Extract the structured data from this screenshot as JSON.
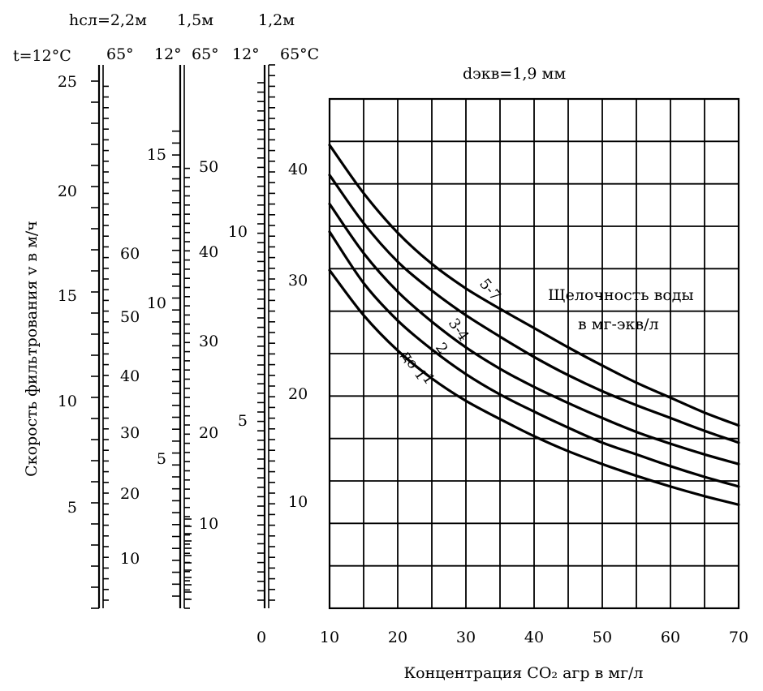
{
  "header": {
    "depth_label": "hсл=2,2м",
    "depth_2": "1,5м",
    "depth_3": "1,2м",
    "temp_left": "t=12°C",
    "temp_1": "65°",
    "temp_2": "12°",
    "temp_3": "65°",
    "temp_4": "12°",
    "temp_5": "65°C"
  },
  "chart_data": {
    "type": "line",
    "title": "dэкв=1,9 мм",
    "xlabel": "Концентрация CO₂ агр в мг/л",
    "ylabel": "Скорость фильтрования v в м/ч",
    "legend_title_1": "Щелочность воды",
    "legend_title_2": "в мг-экв/л",
    "x_tick_labels": [
      "0",
      "10",
      "20",
      "30",
      "40",
      "50",
      "60",
      "70"
    ],
    "xlim": [
      10,
      70
    ],
    "grid": true,
    "series": [
      {
        "name": "5-7",
        "x": [
          10,
          15,
          20,
          25,
          30,
          35,
          40,
          45,
          50,
          55,
          60,
          65,
          70
        ],
        "y": [
          43.5,
          39.0,
          35.3,
          32.4,
          30.1,
          28.2,
          26.4,
          24.6,
          22.9,
          21.3,
          19.9,
          18.5,
          17.3
        ]
      },
      {
        "name": "3-4",
        "x": [
          10,
          15,
          20,
          25,
          30,
          35,
          40,
          45,
          50,
          55,
          60,
          65,
          70
        ],
        "y": [
          40.7,
          36.2,
          32.6,
          29.9,
          27.6,
          25.6,
          23.7,
          22.0,
          20.5,
          19.2,
          18.0,
          16.8,
          15.7
        ]
      },
      {
        "name": "2",
        "x": [
          10,
          15,
          20,
          25,
          30,
          35,
          40,
          45,
          50,
          55,
          60,
          65,
          70
        ],
        "y": [
          38.0,
          33.4,
          29.8,
          27.0,
          24.6,
          22.6,
          20.9,
          19.4,
          18.0,
          16.7,
          15.6,
          14.6,
          13.7
        ]
      },
      {
        "name": "1",
        "x": [
          10,
          15,
          20,
          25,
          30,
          35,
          40,
          45,
          50,
          55,
          60,
          65,
          70
        ],
        "y": [
          35.4,
          30.6,
          27.1,
          24.4,
          22.1,
          20.2,
          18.6,
          17.1,
          15.7,
          14.6,
          13.5,
          12.5,
          11.6
        ]
      },
      {
        "name": "до 1",
        "x": [
          10,
          15,
          20,
          25,
          30,
          35,
          40,
          45,
          50,
          55,
          60,
          65,
          70
        ],
        "y": [
          31.8,
          27.6,
          24.3,
          21.7,
          19.6,
          17.9,
          16.3,
          14.9,
          13.7,
          12.6,
          11.6,
          10.7,
          9.9
        ]
      }
    ],
    "scales": [
      {
        "name": "v, м/ч",
        "labels": [
          "5",
          "10",
          "15",
          "20",
          "25"
        ]
      },
      {
        "name": "hсл=2,2м",
        "labels": [
          "10",
          "20",
          "30",
          "40",
          "50",
          "60"
        ]
      },
      {
        "name": "1,5м left",
        "labels": [
          "5",
          "10",
          "15"
        ]
      },
      {
        "name": "1,5м right",
        "labels": [
          "10",
          "20",
          "30",
          "40",
          "50"
        ]
      },
      {
        "name": "1,2м left",
        "labels": [
          "5",
          "10"
        ]
      },
      {
        "name": "1,2м right",
        "labels": [
          "10",
          "20",
          "30",
          "40"
        ]
      }
    ]
  }
}
